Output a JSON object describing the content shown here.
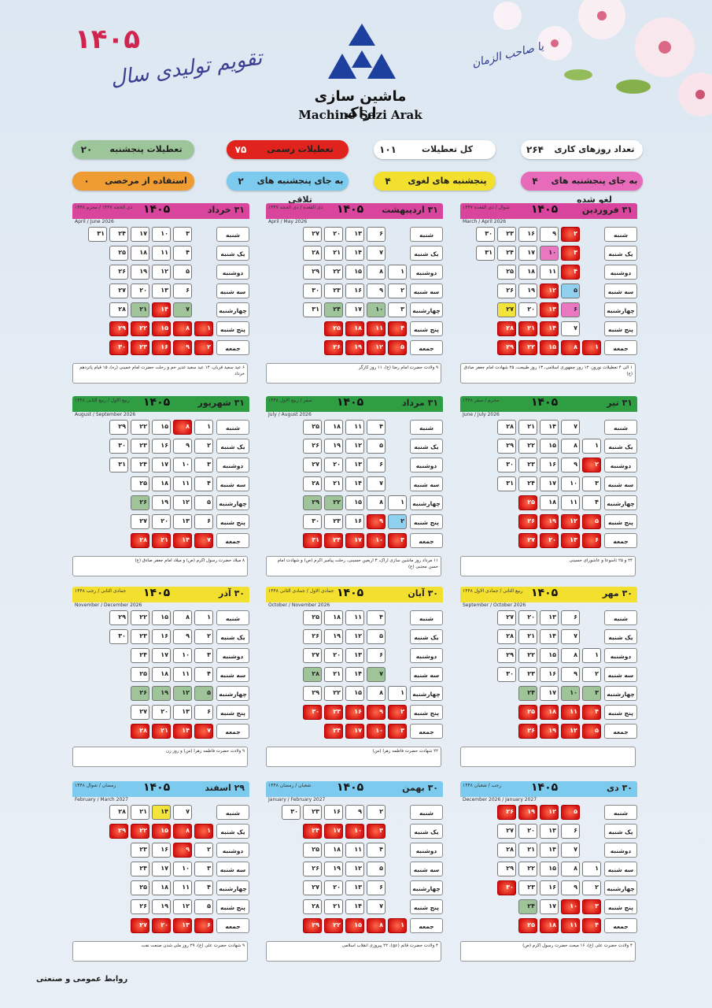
{
  "header": {
    "year": "۱۴۰۵",
    "calendar_title": "تقویم تولیدی سال",
    "company_fa": "ماشین سازی اراک",
    "company_en": "Machine Sazi Arak",
    "calligraphy": "یا صاحب الزمان"
  },
  "stats": [
    {
      "value": "۲۶۴",
      "label": "تعداد روزهای کاری",
      "color": "#ffffff"
    },
    {
      "value": "۱۰۱",
      "label": "کل تعطیلات",
      "color": "#ffffff"
    },
    {
      "value": "۷۵",
      "label": "تعطیلات رسمی",
      "color": "#e0231c"
    },
    {
      "value": "۲۰",
      "label": "تعطیلات پنجشنبه",
      "color": "#9cc59a"
    },
    {
      "value": "۴",
      "label": "به جای پنجشنبه های لغو شده",
      "color": "#e86bbb"
    },
    {
      "value": "۴",
      "label": "پنجشنبه های لغوی",
      "color": "#f2df2e"
    },
    {
      "value": "۲",
      "label": "به جای پنجشنبه های تلاقی",
      "color": "#7ccbee"
    },
    {
      "value": "۰",
      "label": "استفاده از مرخصی",
      "color": "#ef9c33"
    }
  ],
  "weekdays": [
    "شنبه",
    "یک شنبه",
    "دوشنبه",
    "سه شنبه",
    "چهارشنبه",
    "پنج شنبه",
    "جمعه"
  ],
  "months": [
    {
      "name": "فروردین",
      "num": "۱",
      "days": "۳۱",
      "head": "#d9449c",
      "hijri": "شوال / ذی القعده ۱۴۴۷",
      "greg": "March / April 2026",
      "start": 6,
      "len": 31,
      "red": [
        1,
        2,
        3,
        4,
        12,
        13,
        14,
        21,
        28
      ],
      "pink": [
        6,
        10,
        29
      ],
      "blue": [
        5,
        6
      ],
      "yellow": [
        27
      ],
      "green": [],
      "notes": "۱ الی ۴ تعطیلات نوروز، ۱۲ روز جمهوری اسلامی، ۱۳ روز طبیعت، ۲۵ شهادت امام جعفر صادق (ع)"
    },
    {
      "name": "اردیبهشت",
      "num": "۲",
      "days": "۳۱",
      "head": "#d9449c",
      "hijri": "ذی القعده / ذی الحجه ۱۴۴۷",
      "greg": "April / May 2026",
      "start": 2,
      "len": 31,
      "red": [
        4,
        11,
        18,
        25
      ],
      "green": [
        24,
        10
      ],
      "pink": [],
      "blue": [],
      "yellow": [],
      "notes": "۹ ولادت حضرت امام رضا (ع)، ۱۱ روز کارگر"
    },
    {
      "name": "خرداد",
      "num": "۳",
      "days": "۳۱",
      "head": "#d9449c",
      "hijri": "ذی الحجه ۱۴۴۷ / محرم ۱۴۴۸",
      "greg": "April / June 2026",
      "start": 5,
      "len": 31,
      "red": [
        1,
        8,
        14,
        15,
        22,
        29
      ],
      "green": [
        7,
        21
      ],
      "pink": [],
      "blue": [],
      "yellow": [],
      "notes": "۶ عید سعید قربان، ۱۴ عید سعید غدیر خم و رحلت حضرت امام خمینی (ره)، ۱۵ قیام پانزدهم خرداد"
    },
    {
      "name": "تیر",
      "num": "۴",
      "days": "۳۱",
      "head": "#2f9e43",
      "hijri": "محرم / صفر ۱۴۴۸",
      "greg": "June / July 2026",
      "start": 1,
      "len": 31,
      "red": [
        5,
        12,
        19,
        26,
        25,
        2
      ],
      "green": [
        25
      ],
      "pink": [],
      "blue": [],
      "yellow": [],
      "notes": "۲۴ و ۲۵ تاسوعا و عاشورای حسینی"
    },
    {
      "name": "مرداد",
      "num": "۵",
      "days": "۳۱",
      "head": "#2f9e43",
      "hijri": "صفر / ربیع الاول ۱۴۴۸",
      "greg": "July / August 2026",
      "start": 4,
      "len": 31,
      "red": [
        3,
        9,
        10,
        17,
        24,
        31
      ],
      "green": [
        22,
        29
      ],
      "pink": [],
      "blue": [
        2
      ],
      "yellow": [],
      "notes": "۱۱ مرداد روز ماشین سازی اراک، ۳ اربعین حسینی، رحلت پیامبر اکرم (ص) و شهادت امام حسن مجتبی (ع)"
    },
    {
      "name": "شهریور",
      "num": "۶",
      "days": "۳۱",
      "head": "#2f9e43",
      "hijri": "ربیع الاول / ربیع الثانی ۱۴۴۸",
      "greg": "August / September 2026",
      "start": 0,
      "len": 31,
      "red": [
        7,
        8,
        14,
        21,
        28
      ],
      "green": [
        26
      ],
      "pink": [],
      "blue": [],
      "yellow": [],
      "notes": "۸ میلاد حضرت رسول اکرم (ص) و میلاد امام جعفر صادق (ع)"
    },
    {
      "name": "مهر",
      "num": "۷",
      "days": "۳۰",
      "head": "#f2df2e",
      "hijri": "ربیع الثانی / جمادی الاول ۱۴۴۸",
      "greg": "September / October 2026",
      "start": 2,
      "len": 30,
      "red": [
        4,
        11,
        18,
        25
      ],
      "green": [
        3,
        10,
        24
      ],
      "pink": [],
      "blue": [],
      "yellow": [],
      "notes": ""
    },
    {
      "name": "آبان",
      "num": "۸",
      "days": "۳۰",
      "head": "#f2df2e",
      "hijri": "جمادی الاول / جمادی الثانی ۱۴۴۸",
      "greg": "October / November 2026",
      "start": 4,
      "len": 30,
      "red": [
        2,
        9,
        16,
        23,
        30
      ],
      "green": [
        7,
        28
      ],
      "pink": [],
      "blue": [],
      "yellow": [],
      "notes": "۲۲ شهادت حضرت فاطمه زهرا (س)"
    },
    {
      "name": "آذر",
      "num": "۹",
      "days": "۳۰",
      "head": "#f2df2e",
      "hijri": "جمادی الثانی / رجب ۱۴۴۸",
      "greg": "November / December 2026",
      "start": 0,
      "len": 30,
      "red": [
        7,
        14,
        21,
        28
      ],
      "green": [
        5,
        12,
        19,
        26
      ],
      "pink": [],
      "blue": [],
      "yellow": [],
      "notes": "۹ ولادت حضرت فاطمه زهرا (س) و روز زن"
    },
    {
      "name": "دی",
      "num": "۱۰",
      "days": "۳۰",
      "head": "#7ccbee",
      "hijri": "رجب / شعبان ۱۴۴۸",
      "greg": "December 2026 / January 2027",
      "start": 3,
      "len": 30,
      "red": [
        5,
        12,
        19,
        26,
        30,
        3,
        10
      ],
      "green": [
        24
      ],
      "pink": [],
      "blue": [],
      "yellow": [],
      "notes": "۴ ولادت حضرت علی (ع)، ۱۶ مبعث حضرت رسول اکرم (ص)"
    },
    {
      "name": "بهمن",
      "num": "۱۱",
      "days": "۳۰",
      "head": "#7ccbee",
      "hijri": "شعبان / رمضان ۱۴۴۸",
      "greg": "January / February 2027",
      "start": 6,
      "len": 30,
      "red": [
        3,
        10,
        17,
        22,
        24
      ],
      "green": [
        29
      ],
      "pink": [],
      "blue": [],
      "yellow": [
        8
      ],
      "notes": "۴ ولادت حضرت قائم (عج)، ۲۲ پیروزی انقلاب اسلامی"
    },
    {
      "name": "اسفند",
      "num": "۱۲",
      "days": "۲۹",
      "head": "#7ccbee",
      "hijri": "رمضان / شوال ۱۴۴۸",
      "greg": "February / March 2027",
      "start": 1,
      "len": 29,
      "red": [
        1,
        8,
        9,
        15,
        20,
        22,
        29
      ],
      "green": [],
      "pink": [],
      "blue": [],
      "yellow": [
        14
      ],
      "notes": "۹ شهادت حضرت علی (ع)، ۲۹ روز ملی شدن صنعت نفت"
    }
  ],
  "footer": "روابط عمومی و صنعتی"
}
